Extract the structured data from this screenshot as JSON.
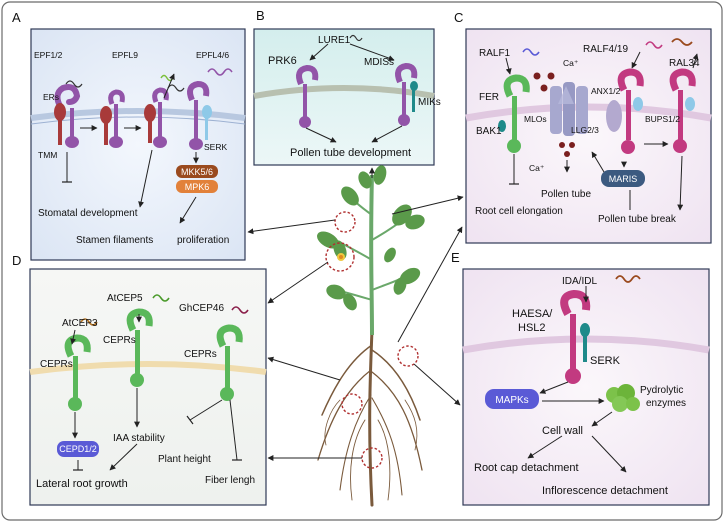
{
  "panel_letters": {
    "a": "A",
    "b": "B",
    "c": "C",
    "d": "D",
    "e": "E"
  },
  "panel_a": {
    "epf12": "EPF1/2",
    "epfl9": "EPFL9",
    "epfl46": "EPFL4/6",
    "ers": "ERs",
    "tmm": "TMM",
    "serk": "SERK",
    "mkk": "MKK5/6",
    "mpk": "MPK6",
    "stomatal": "Stomatal development",
    "stamen": "Stamen filaments",
    "proliferation": "proliferation"
  },
  "panel_b": {
    "lure1": "LURE1",
    "prk6": "PRK6",
    "mdiss": "MDISs",
    "miks": "MIKs",
    "outcome": "Pollen tube development"
  },
  "panel_c": {
    "ralf1": "RALF1",
    "fer": "FER",
    "bak1": "BAK1",
    "ca_top": "Ca⁺",
    "ca_bottom": "Ca⁺",
    "mlos": "MLOs",
    "llg": "LLG2/3",
    "ralf419": "RALF4/19",
    "ral34": "RAL34",
    "anx": "ANX1/2",
    "bups": "BUPS1/2",
    "maris": "MARIS",
    "pollen_tube": "Pollen tube",
    "root_cell": "Root cell elongation",
    "pollen_break": "Pollen tube break"
  },
  "panel_d": {
    "atcep3": "AtCEP3",
    "atcep5": "AtCEP5",
    "ghcep46": "GhCEP46",
    "ceprs1": "CEPRs",
    "ceprs2": "CEPRs",
    "ceprs3": "CEPRs",
    "cepd": "CEPD1/2",
    "iaa": "IAA stability",
    "lateral": "Lateral root growth",
    "height": "Plant height",
    "fiber": "Fiber lengh"
  },
  "panel_e": {
    "ida": "IDA/IDL",
    "haesa": "HAESA/",
    "hsl2": "HSL2",
    "serk": "SERK",
    "mapks": "MAPKs",
    "pydrolytic": "Pydrolytic",
    "enzymes": "enzymes",
    "cellwall": "Cell wall",
    "rootcap": "Root cap detachment",
    "inflor": "Inflorescence detachment"
  },
  "colors": {
    "outer_border": "#6b6b6b",
    "panel_border": "#2f3a56",
    "panel_bg_blue": "#e3ecf8",
    "panel_bg_pink": "#f7eef5",
    "panel_bg_teal": "#daf0ef",
    "receptor_purple": "#9254a8",
    "receptor_red": "#a83a3a",
    "receptor_green": "#5ab85a",
    "receptor_magenta": "#c23a80",
    "teal": "#1f8a8a",
    "mapk_blue": "#5a5ad6",
    "enzyme_green": "#7cc24a",
    "mkk_brown": "#9a4a1e",
    "mpk_orange": "#e2813a",
    "maris_navy": "#3c5a80",
    "plant_green": "#6aa86a",
    "root_brown": "#7a5a3c"
  }
}
